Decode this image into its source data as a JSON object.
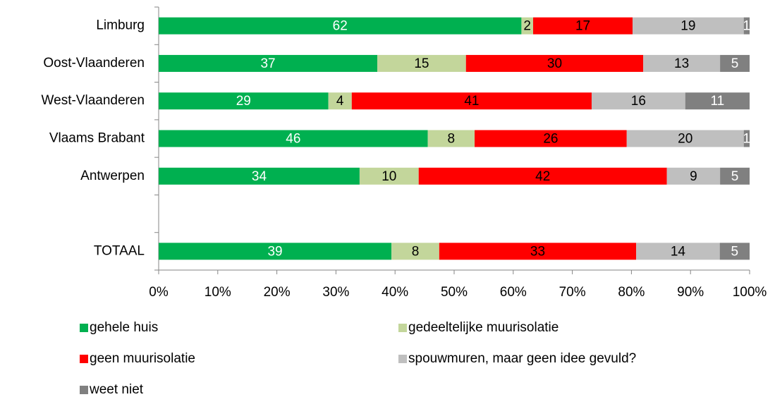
{
  "chart_data": {
    "type": "bar",
    "orientation": "horizontal",
    "stacking": "percent",
    "categories": [
      "Limburg",
      "Oost-Vlaanderen",
      "West-Vlaanderen",
      "Vlaams Brabant",
      "Antwerpen",
      null,
      "TOTAAL"
    ],
    "series": [
      {
        "name": "gehele huis",
        "color": "#00b050",
        "label_color": "#ffffff",
        "values": [
          62,
          37,
          29,
          46,
          34,
          null,
          39
        ]
      },
      {
        "name": "gedeeltelijke muurisolatie",
        "color": "#c3d69b",
        "label_color": "#000000",
        "values": [
          2,
          15,
          4,
          8,
          10,
          null,
          8
        ]
      },
      {
        "name": "geen muurisolatie",
        "color": "#ff0000",
        "label_color": "#000000",
        "values": [
          17,
          30,
          41,
          26,
          42,
          null,
          33
        ]
      },
      {
        "name": "spouwmuren, maar geen idee gevuld?",
        "color": "#bfbfbf",
        "label_color": "#000000",
        "values": [
          19,
          13,
          16,
          20,
          9,
          null,
          14
        ]
      },
      {
        "name": "weet niet",
        "color": "#808080",
        "label_color": "#ffffff",
        "values": [
          1,
          5,
          11,
          1,
          5,
          null,
          5
        ]
      }
    ],
    "xlim": [
      0,
      100
    ],
    "xticks": [
      {
        "value": 0,
        "label": "0%"
      },
      {
        "value": 10,
        "label": "10%"
      },
      {
        "value": 20,
        "label": "20%"
      },
      {
        "value": 30,
        "label": "30%"
      },
      {
        "value": 40,
        "label": "40%"
      },
      {
        "value": 50,
        "label": "50%"
      },
      {
        "value": 60,
        "label": "60%"
      },
      {
        "value": 70,
        "label": "70%"
      },
      {
        "value": 80,
        "label": "80%"
      },
      {
        "value": 90,
        "label": "90%"
      },
      {
        "value": 100,
        "label": "100%"
      }
    ],
    "legend": "bottom",
    "grid": false
  }
}
